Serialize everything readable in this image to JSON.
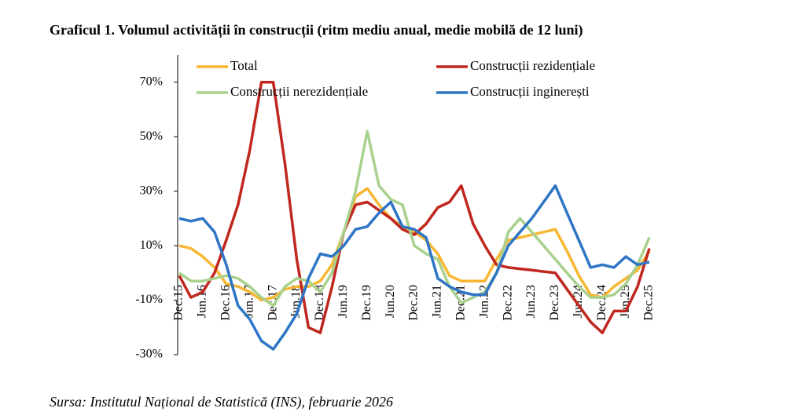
{
  "chart_data": {
    "type": "line",
    "title": "Graficul 1. Volumul activității în construcții (ritm mediu anual, medie mobilă de 12 luni)",
    "source": "Sursa: Institutul Național de Statistică (INS), februarie 2026",
    "categories": [
      "Dec.15",
      null,
      "Jun.16",
      null,
      "Dec.16",
      null,
      "Jun.17",
      null,
      "Dec.17",
      null,
      "Jun.18",
      null,
      "Dec.18",
      null,
      "Jun.19",
      null,
      "Dec.19",
      null,
      "Jun.20",
      null,
      "Dec.20",
      null,
      "Jun.21",
      null,
      "Dec.21",
      null,
      "Jun.22",
      null,
      "Dec.22",
      null,
      "Jun.23",
      null,
      "Dec.23",
      null,
      "Jun.24",
      null,
      "Dec.24",
      null,
      "Jun.25",
      null,
      "Dec.25"
    ],
    "ylim": [
      -30,
      80
    ],
    "yticks": [
      {
        "value": -30,
        "label": "-30%"
      },
      {
        "value": -10,
        "label": "-10%"
      },
      {
        "value": 10,
        "label": "10%"
      },
      {
        "value": 30,
        "label": "30%"
      },
      {
        "value": 50,
        "label": "50%"
      },
      {
        "value": 70,
        "label": "70%"
      }
    ],
    "grid": false,
    "series": [
      {
        "name": "Total",
        "color": "#f7b731",
        "values": [
          10,
          9,
          6,
          2,
          -4,
          -5,
          -7,
          -10,
          -9,
          -6,
          -5,
          -5,
          -3,
          3,
          15,
          28,
          31,
          25,
          20,
          17,
          15,
          12,
          7,
          -1,
          -3,
          -3,
          -3,
          5,
          12,
          13,
          14,
          15,
          16,
          8,
          -1,
          -8,
          -9,
          -5,
          -2,
          1,
          8
        ]
      },
      {
        "name": "Construcții rezidențiale",
        "color": "#c0271f",
        "values": [
          -1,
          -9,
          -7,
          0,
          12,
          25,
          45,
          70,
          70,
          40,
          5,
          -20,
          -22,
          -5,
          15,
          25,
          26,
          23,
          20,
          16,
          14,
          18,
          24,
          26,
          32,
          18,
          10,
          3,
          2,
          1.5,
          1,
          0.5,
          0,
          -6,
          -12,
          -18,
          -22,
          -14,
          -14,
          -5,
          9
        ]
      },
      {
        "name": "Construcții nerezidențiale",
        "color": "#a9d18e",
        "values": [
          0,
          -3,
          -3,
          -2,
          -1,
          -2,
          -5,
          -9,
          -12,
          -5,
          -2,
          -3,
          -7,
          0,
          15,
          30,
          52,
          32,
          27,
          25,
          10,
          7,
          5,
          -5,
          -11,
          -9,
          -7,
          0,
          15,
          20,
          15,
          10,
          5,
          0,
          -5,
          -9,
          -9,
          -8,
          -4,
          3,
          13
        ]
      },
      {
        "name": "Construcții inginerești",
        "color": "#2e75c6",
        "values": [
          20,
          19,
          20,
          15,
          3,
          -12,
          -17,
          -25,
          -28,
          -22,
          -15,
          -2,
          7,
          6,
          10,
          16,
          17,
          22,
          26,
          17,
          16,
          13,
          -2,
          -5,
          -7,
          -8,
          -8,
          0,
          10,
          15,
          20,
          26,
          32,
          22,
          12,
          2,
          3,
          2,
          6,
          3,
          4
        ]
      }
    ]
  }
}
